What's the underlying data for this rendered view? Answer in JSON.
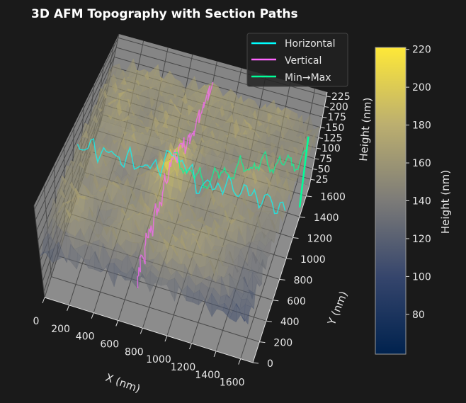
{
  "chart_data": {
    "type": "surface3d",
    "title": "3D AFM Topography with Section Paths",
    "xlabel": "X (nm)",
    "ylabel": "Y (nm)",
    "zlabel": "Height (nm)",
    "xlim": [
      0,
      1700
    ],
    "ylim": [
      0,
      1700
    ],
    "zlim": [
      10,
      235
    ],
    "x_ticks": [
      "0",
      "200",
      "400",
      "600",
      "800",
      "1000",
      "1200",
      "1400",
      "1600"
    ],
    "y_ticks": [
      "0",
      "200",
      "400",
      "600",
      "800",
      "1000",
      "1200",
      "1400",
      "1600"
    ],
    "z_ticks": [
      "25",
      "50",
      "75",
      "100",
      "125",
      "150",
      "175",
      "200",
      "225"
    ],
    "colormap": "cividis",
    "colorbar": {
      "label": "Height (nm)",
      "range": [
        59,
        221
      ],
      "ticks": [
        "80",
        "100",
        "120",
        "140",
        "160",
        "180",
        "200",
        "220"
      ]
    },
    "grid_x": [
      0,
      200,
      400,
      600,
      800,
      1000,
      1200,
      1400,
      1600
    ],
    "grid_y": [
      0,
      200,
      400,
      600,
      800,
      1000,
      1200,
      1400,
      1600
    ],
    "z_estimate": [
      [
        110,
        120,
        125,
        115,
        120,
        130,
        118,
        110,
        105
      ],
      [
        140,
        165,
        150,
        160,
        150,
        170,
        160,
        155,
        120
      ],
      [
        150,
        175,
        140,
        170,
        165,
        160,
        175,
        150,
        130
      ],
      [
        160,
        150,
        170,
        150,
        175,
        160,
        150,
        170,
        140
      ],
      [
        150,
        170,
        140,
        165,
        215,
        150,
        170,
        155,
        150
      ],
      [
        165,
        150,
        175,
        140,
        200,
        140,
        160,
        175,
        160
      ],
      [
        150,
        170,
        160,
        175,
        160,
        170,
        150,
        165,
        155
      ],
      [
        160,
        175,
        150,
        170,
        165,
        160,
        175,
        150,
        160
      ],
      [
        150,
        165,
        170,
        160,
        175,
        165,
        160,
        170,
        150
      ]
    ],
    "legend": {
      "position": "top-right",
      "entries": [
        {
          "label": "Horizontal",
          "color": "#00ffff"
        },
        {
          "label": "Vertical",
          "color": "#ff66ff"
        },
        {
          "label": "Min→Max",
          "color": "#00ff99"
        }
      ]
    },
    "section_paths": {
      "horizontal_y": 900,
      "vertical_x": 800,
      "min_point": [
        1700,
        1350
      ],
      "max_point": [
        800,
        850
      ]
    }
  }
}
